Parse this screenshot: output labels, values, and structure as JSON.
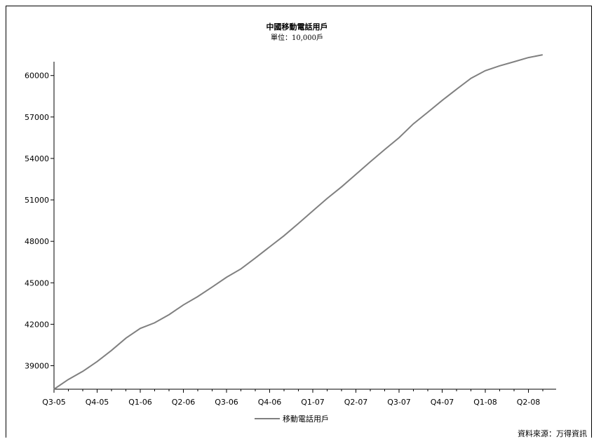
{
  "chart_data": {
    "type": "line",
    "title": "中國移動電話用戶",
    "subtitle": "單位：10,000戶",
    "source": "資料來源：万得資訊",
    "xlabel": "",
    "ylabel": "",
    "categories": [
      "Q3-05",
      "Q4-05",
      "Q1-06",
      "Q2-06",
      "Q3-06",
      "Q4-06",
      "Q1-07",
      "Q2-07",
      "Q3-07",
      "Q4-07",
      "Q1-08",
      "Q2-08"
    ],
    "y_ticks": [
      39000,
      42000,
      45000,
      48000,
      51000,
      54000,
      57000,
      60000
    ],
    "ylim": [
      37300,
      61000
    ],
    "grid": false,
    "legend_position": "bottom-center",
    "series": [
      {
        "name": "移動電話用戶",
        "color": "#808080",
        "x": [
          0,
          0.33,
          0.67,
          1.0,
          1.33,
          1.67,
          2.0,
          2.33,
          2.67,
          3.0,
          3.33,
          3.67,
          4.0,
          4.33,
          4.67,
          5.0,
          5.33,
          5.67,
          6.0,
          6.33,
          6.67,
          7.0,
          7.33,
          7.67,
          8.0,
          8.33,
          8.67,
          9.0,
          9.33,
          9.67,
          10.0,
          10.33,
          10.67,
          11.0,
          11.33
        ],
        "values": [
          37300,
          38000,
          38600,
          39300,
          40100,
          41000,
          41700,
          42100,
          42700,
          43400,
          44000,
          44700,
          45400,
          46000,
          46800,
          47600,
          48400,
          49300,
          50200,
          51100,
          51950,
          52850,
          53750,
          54650,
          55500,
          56500,
          57350,
          58200,
          59000,
          59800,
          60350,
          60700,
          61000,
          61300,
          61500
        ]
      }
    ]
  }
}
